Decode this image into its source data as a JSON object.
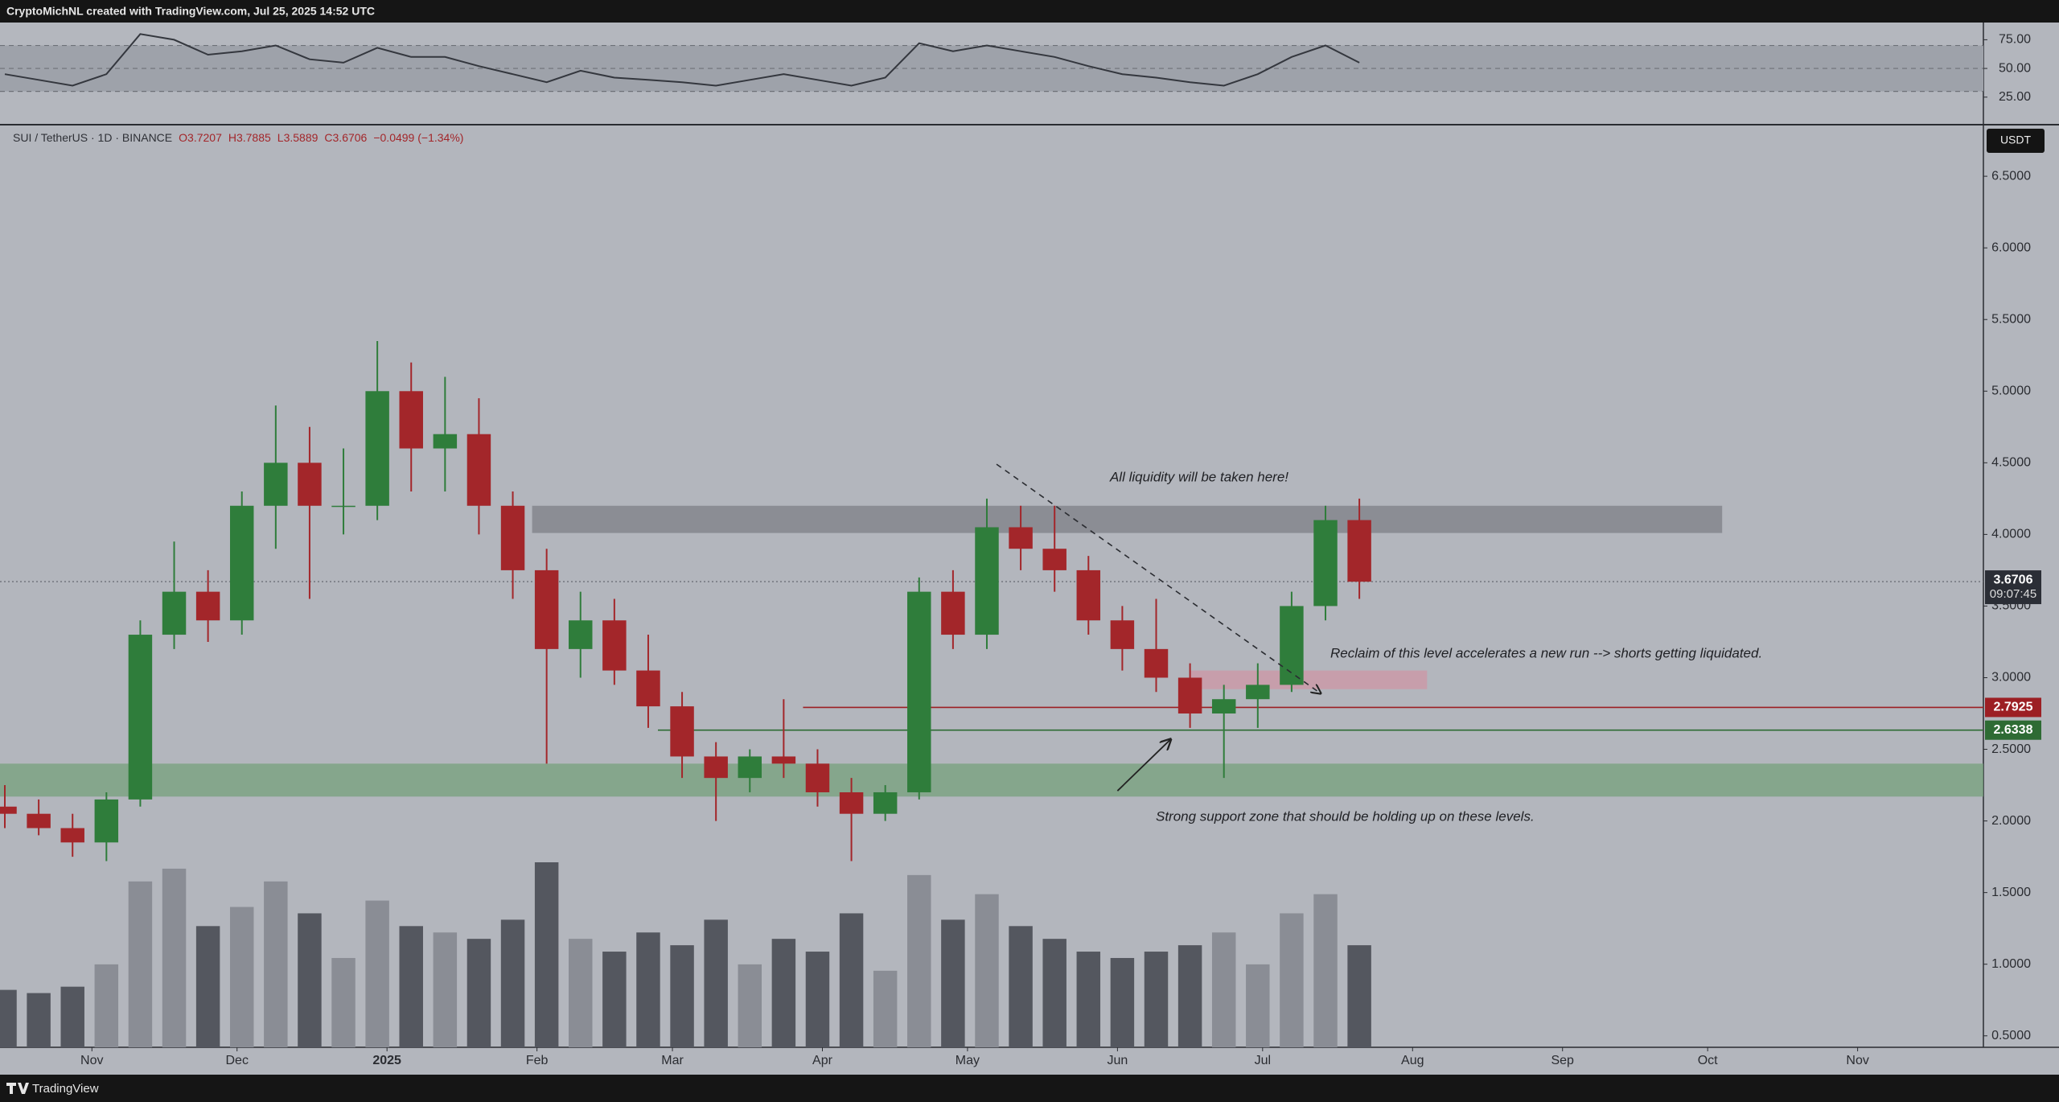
{
  "header": {
    "title": "CryptoMichNL created with TradingView.com, Jul 25, 2025 14:52 UTC"
  },
  "footer": {
    "brand": "TradingView"
  },
  "chart_data": [
    {
      "type": "line",
      "x": [
        "2024-10-14",
        "2024-10-21",
        "2024-10-28",
        "2024-11-04",
        "2024-11-11",
        "2024-11-18",
        "2024-11-25",
        "2024-12-02",
        "2024-12-09",
        "2024-12-16",
        "2024-12-23",
        "2024-12-30",
        "2025-01-06",
        "2025-01-13",
        "2025-01-20",
        "2025-01-27",
        "2025-02-03",
        "2025-02-10",
        "2025-02-17",
        "2025-02-24",
        "2025-03-03",
        "2025-03-10",
        "2025-03-17",
        "2025-03-24",
        "2025-03-31",
        "2025-04-07",
        "2025-04-14",
        "2025-04-21",
        "2025-04-28",
        "2025-05-05",
        "2025-05-12",
        "2025-05-19",
        "2025-05-26",
        "2025-06-02",
        "2025-06-09",
        "2025-06-16",
        "2025-06-23",
        "2025-06-30",
        "2025-07-07",
        "2025-07-14",
        "2025-07-21"
      ],
      "values": [
        45,
        40,
        35,
        45,
        80,
        75,
        62,
        65,
        70,
        58,
        55,
        68,
        60,
        60,
        52,
        45,
        38,
        48,
        42,
        40,
        38,
        35,
        40,
        45,
        40,
        35,
        42,
        72,
        65,
        70,
        65,
        60,
        52,
        45,
        42,
        38,
        35,
        45,
        60,
        70,
        55
      ],
      "color": "#34373e",
      "ylim": [
        1,
        90
      ],
      "yticks": [
        {
          "value": 25,
          "label": "25.00"
        },
        {
          "value": 50,
          "label": "50.00"
        },
        {
          "value": 75,
          "label": "75.00"
        }
      ],
      "levels": [
        30,
        50,
        70
      ],
      "band_color": "#9ea2aa"
    },
    {
      "type": "candlestick",
      "symbol": "SUI / TetherUS · 1D · BINANCE",
      "legend": [
        "O3.7207",
        "H3.7885",
        "L3.5889",
        "C3.6706",
        "−0.0499 (−1.34%)"
      ],
      "currency": "USDT",
      "x": [
        "2024-10-14",
        "2024-10-21",
        "2024-10-28",
        "2024-11-04",
        "2024-11-11",
        "2024-11-18",
        "2024-11-25",
        "2024-12-02",
        "2024-12-09",
        "2024-12-16",
        "2024-12-23",
        "2024-12-30",
        "2025-01-06",
        "2025-01-13",
        "2025-01-20",
        "2025-01-27",
        "2025-02-03",
        "2025-02-10",
        "2025-02-17",
        "2025-02-24",
        "2025-03-03",
        "2025-03-10",
        "2025-03-17",
        "2025-03-24",
        "2025-03-31",
        "2025-04-07",
        "2025-04-14",
        "2025-04-21",
        "2025-04-28",
        "2025-05-05",
        "2025-05-12",
        "2025-05-19",
        "2025-05-26",
        "2025-06-02",
        "2025-06-09",
        "2025-06-16",
        "2025-06-23",
        "2025-06-30",
        "2025-07-07",
        "2025-07-14",
        "2025-07-21"
      ],
      "open": [
        2.1,
        2.05,
        1.95,
        1.85,
        2.15,
        3.3,
        3.6,
        3.4,
        4.2,
        4.5,
        4.2,
        4.2,
        5.0,
        4.6,
        4.7,
        4.2,
        3.75,
        3.2,
        3.4,
        3.05,
        2.8,
        2.45,
        2.3,
        2.45,
        2.4,
        2.2,
        2.05,
        2.2,
        3.6,
        3.3,
        4.05,
        3.9,
        3.75,
        3.4,
        3.2,
        3.0,
        2.75,
        2.85,
        2.95,
        3.5,
        4.1
      ],
      "high": [
        2.25,
        2.15,
        2.05,
        2.2,
        3.4,
        3.95,
        3.75,
        4.3,
        4.9,
        4.75,
        4.6,
        5.35,
        5.2,
        5.1,
        4.95,
        4.3,
        3.9,
        3.6,
        3.55,
        3.3,
        2.9,
        2.55,
        2.5,
        2.85,
        2.5,
        2.3,
        2.25,
        3.7,
        3.75,
        4.25,
        4.2,
        4.2,
        3.85,
        3.5,
        3.55,
        3.1,
        2.95,
        3.1,
        3.6,
        4.2,
        4.25
      ],
      "low": [
        1.95,
        1.9,
        1.75,
        1.72,
        2.1,
        3.2,
        3.25,
        3.3,
        3.9,
        3.55,
        4.0,
        4.1,
        4.3,
        4.3,
        4.0,
        3.55,
        2.4,
        3.0,
        2.95,
        2.65,
        2.3,
        2.0,
        2.2,
        2.3,
        2.1,
        1.72,
        2.0,
        2.15,
        3.2,
        3.2,
        3.75,
        3.6,
        3.3,
        3.05,
        2.9,
        2.65,
        2.3,
        2.65,
        2.9,
        3.4,
        3.55
      ],
      "close": [
        2.05,
        1.95,
        1.85,
        2.15,
        3.3,
        3.6,
        3.4,
        4.2,
        4.5,
        4.2,
        4.2,
        5.0,
        4.6,
        4.7,
        4.2,
        3.75,
        3.2,
        3.4,
        3.05,
        2.8,
        2.45,
        2.3,
        2.45,
        2.4,
        2.2,
        2.05,
        2.2,
        3.6,
        3.3,
        4.05,
        3.9,
        3.75,
        3.4,
        3.2,
        3.0,
        2.75,
        2.85,
        2.95,
        3.5,
        4.1,
        3.67
      ],
      "volume": [
        900,
        850,
        950,
        1300,
        2600,
        2800,
        1900,
        2200,
        2600,
        2100,
        1400,
        2300,
        1900,
        1800,
        1700,
        2000,
        2900,
        1700,
        1500,
        1800,
        1600,
        2000,
        1300,
        1700,
        1500,
        2100,
        1200,
        2700,
        2000,
        2400,
        1900,
        1700,
        1500,
        1400,
        1500,
        1600,
        1800,
        1300,
        2100,
        2400,
        1600
      ],
      "up_color": "#2f7d3b",
      "down_color": "#a3262a",
      "volume_up_color": "#8a8d95",
      "volume_down_color": "#54575f",
      "xlim": [
        "2024-10-13",
        "2025-11-27"
      ],
      "xticks": [
        {
          "value": "2024-11-01",
          "label": "Nov"
        },
        {
          "value": "2024-12-01",
          "label": "Dec"
        },
        {
          "value": "2025-01-01",
          "label": "2025"
        },
        {
          "value": "2025-02-01",
          "label": "Feb"
        },
        {
          "value": "2025-03-01",
          "label": "Mar"
        },
        {
          "value": "2025-04-01",
          "label": "Apr"
        },
        {
          "value": "2025-05-01",
          "label": "May"
        },
        {
          "value": "2025-06-01",
          "label": "Jun"
        },
        {
          "value": "2025-07-01",
          "label": "Jul"
        },
        {
          "value": "2025-08-01",
          "label": "Aug"
        },
        {
          "value": "2025-09-01",
          "label": "Sep"
        },
        {
          "value": "2025-10-01",
          "label": "Oct"
        },
        {
          "value": "2025-11-01",
          "label": "Nov"
        }
      ],
      "ylim": [
        0.42,
        6.86
      ],
      "yticks": [
        {
          "value": 0.5,
          "label": "0.5000"
        },
        {
          "value": 1,
          "label": "1.0000"
        },
        {
          "value": 1.5,
          "label": "1.5000"
        },
        {
          "value": 2,
          "label": "2.0000"
        },
        {
          "value": 2.5,
          "label": "2.5000"
        },
        {
          "value": 3,
          "label": "3.0000"
        },
        {
          "value": 3.5,
          "label": "3.5000"
        },
        {
          "value": 4,
          "label": "4.0000"
        },
        {
          "value": 4.5,
          "label": "4.5000"
        },
        {
          "value": 5,
          "label": "5.0000"
        },
        {
          "value": 5.5,
          "label": "5.5000"
        },
        {
          "value": 6,
          "label": "6.0000"
        },
        {
          "value": 6.5,
          "label": "6.5000"
        }
      ],
      "zones": [
        {
          "range": [
            2.17,
            2.4
          ],
          "x": [
            "2024-10-13",
            "2025-11-27"
          ],
          "color": "rgba(118,160,124,0.75)"
        },
        {
          "range": [
            4.01,
            4.2
          ],
          "x": [
            "2025-01-31",
            "2025-10-04"
          ],
          "color": "rgba(112,114,120,0.6)"
        },
        {
          "range": [
            2.92,
            3.05
          ],
          "x": [
            "2025-06-16",
            "2025-08-04"
          ],
          "color": "rgba(206,150,166,0.75)"
        }
      ],
      "levels": [
        {
          "value": 2.7925,
          "color": "#9c1f24",
          "start": "2025-03-28"
        },
        {
          "value": 2.6338,
          "color": "#2e6b34",
          "start": "2025-02-26"
        }
      ],
      "last_price": {
        "value": 3.6706,
        "countdown": "09:07:45",
        "color": "#2b2e36"
      },
      "trendline": {
        "x": [
          "2025-05-07",
          "2025-07-13"
        ],
        "y": [
          4.49,
          2.89
        ]
      },
      "arrow": {
        "x": [
          "2025-06-01",
          "2025-06-12"
        ],
        "y": [
          2.21,
          2.57
        ]
      },
      "annotations": [
        "All liquidity will be taken here!",
        "Reclaim of this level accelerates a new run --> shorts getting liquidated.",
        "Strong support zone that should be holding up on these levels."
      ]
    }
  ]
}
